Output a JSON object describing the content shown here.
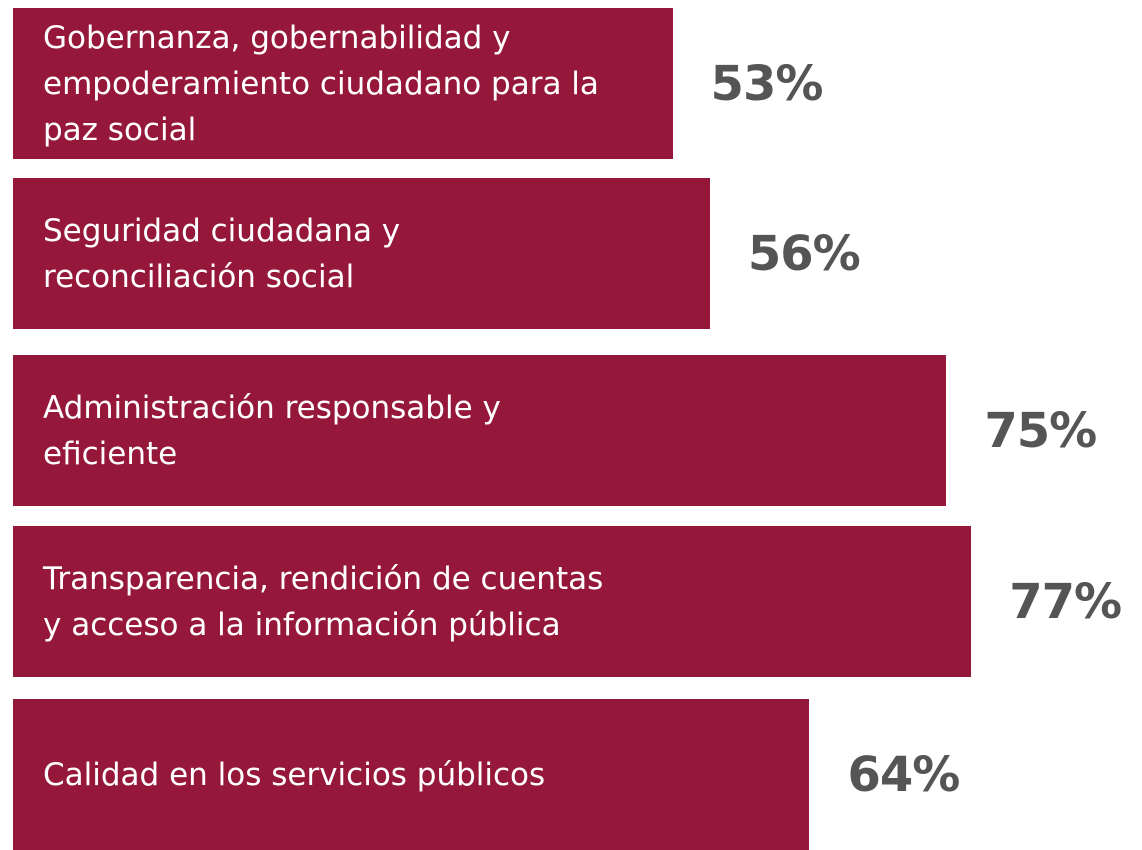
{
  "chart_data": {
    "type": "bar",
    "orientation": "horizontal",
    "categories": [
      "Gobernanza, gobernabilidad y empoderamiento ciudadano para la paz social",
      "Seguridad ciudadana y reconciliación social",
      "Administración responsable y eficiente",
      "Transparencia, rendición de cuentas y acceso a la información pública",
      "Calidad en los servicios públicos"
    ],
    "values": [
      53,
      56,
      75,
      77,
      64
    ],
    "value_labels": [
      "53%",
      "56%",
      "75%",
      "77%",
      "64%"
    ],
    "color": "#95173a",
    "xlim": [
      0,
      90
    ]
  }
}
